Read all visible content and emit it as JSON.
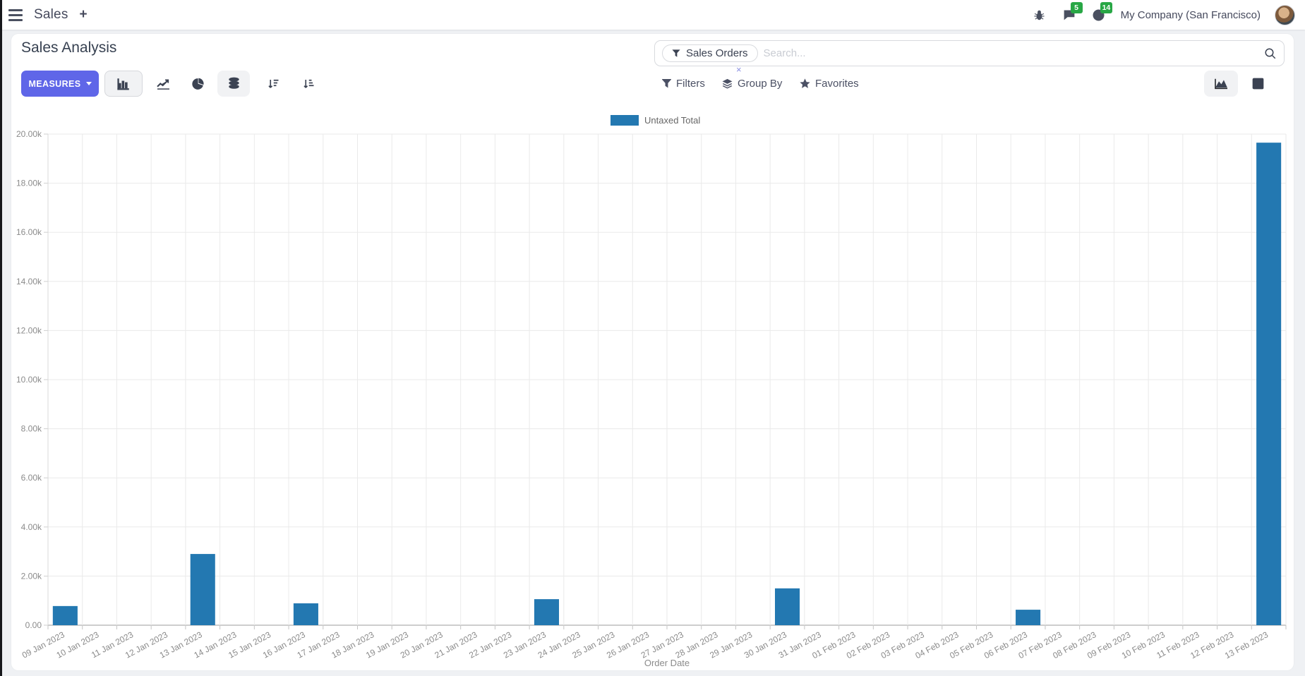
{
  "navbar": {
    "app_name": "Sales",
    "messages_badge": "5",
    "activities_badge": "14",
    "company": "My Company (San Francisco)"
  },
  "control_panel": {
    "title": "Sales Analysis",
    "measures_label": "MEASURES",
    "search": {
      "facet": "Sales Orders",
      "placeholder": "Search...",
      "facet_close": "×"
    },
    "filters_label": "Filters",
    "group_by_label": "Group By",
    "favorites_label": "Favorites"
  },
  "colors": {
    "accent": "#5f66e8",
    "bar_blue": "#2378b1",
    "badge_green": "#28a745",
    "grid": "#eaeaea",
    "axis": "#9b9b9b",
    "tick_text": "#8b8b8b",
    "legend_text": "#666666"
  },
  "chart_data": {
    "type": "bar",
    "title": "",
    "xlabel": "Order Date",
    "ylabel": "",
    "ylim": [
      0,
      20000
    ],
    "y_tick_step": 2000,
    "grid": true,
    "legend_position": "top-center",
    "legend": [
      {
        "label": "Untaxed Total",
        "color": "#2378b1"
      }
    ],
    "categories": [
      "09 Jan 2023",
      "10 Jan 2023",
      "11 Jan 2023",
      "12 Jan 2023",
      "13 Jan 2023",
      "14 Jan 2023",
      "15 Jan 2023",
      "16 Jan 2023",
      "17 Jan 2023",
      "18 Jan 2023",
      "19 Jan 2023",
      "20 Jan 2023",
      "21 Jan 2023",
      "22 Jan 2023",
      "23 Jan 2023",
      "24 Jan 2023",
      "25 Jan 2023",
      "26 Jan 2023",
      "27 Jan 2023",
      "28 Jan 2023",
      "29 Jan 2023",
      "30 Jan 2023",
      "31 Jan 2023",
      "01 Feb 2023",
      "02 Feb 2023",
      "03 Feb 2023",
      "04 Feb 2023",
      "05 Feb 2023",
      "06 Feb 2023",
      "07 Feb 2023",
      "08 Feb 2023",
      "09 Feb 2023",
      "10 Feb 2023",
      "11 Feb 2023",
      "12 Feb 2023",
      "13 Feb 2023"
    ],
    "series": [
      {
        "name": "Untaxed Total",
        "color": "#2378b1",
        "values": [
          780,
          0,
          0,
          0,
          2900,
          0,
          0,
          890,
          0,
          0,
          0,
          0,
          0,
          0,
          1060,
          0,
          0,
          0,
          0,
          0,
          0,
          1500,
          0,
          0,
          0,
          0,
          0,
          0,
          630,
          0,
          0,
          0,
          0,
          0,
          0,
          19650
        ]
      }
    ]
  }
}
